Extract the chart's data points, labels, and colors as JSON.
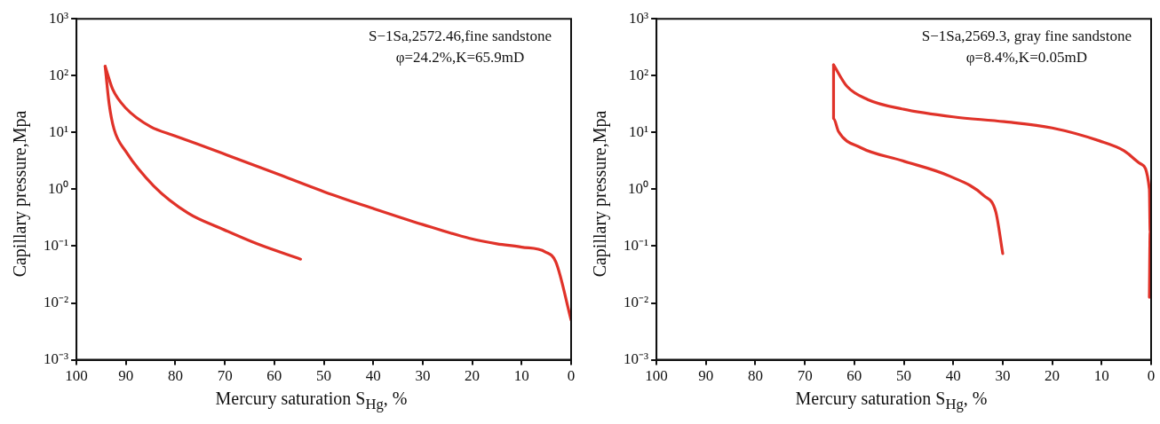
{
  "chart_data": [
    {
      "type": "line",
      "xlabel": "Mercury saturation S$_{Hg}$, %",
      "ylabel": "Capillary pressure,Mpa",
      "xlim": [
        100,
        0
      ],
      "xticks": [
        100,
        90,
        80,
        70,
        60,
        50,
        40,
        30,
        20,
        10,
        0
      ],
      "ylim": [
        0.001,
        1000
      ],
      "yticks": [
        {
          "value": 0.001,
          "label": "10⁻³"
        },
        {
          "value": 0.01,
          "label": "10⁻²"
        },
        {
          "value": 0.1,
          "label": "10⁻¹"
        },
        {
          "value": 1,
          "label": "10⁰"
        },
        {
          "value": 10,
          "label": "10¹"
        },
        {
          "value": 100,
          "label": "10²"
        },
        {
          "value": 1000,
          "label": "10³"
        }
      ],
      "log": "y",
      "grid": false,
      "legend": false,
      "marker": "none",
      "line_style": "solid",
      "annotations": [
        "S−1Sa,2572.46,fine sandstone",
        "φ=24.2%,K=65.9mD"
      ],
      "series": [
        {
          "color": "#e03229",
          "x": [
            0,
            3.1,
            5.2,
            10,
            15,
            20.5,
            30,
            40,
            49.7,
            60,
            70.5,
            80.2,
            85,
            90,
            92.7,
            94.2
          ],
          "values": [
            0.005,
            0.053,
            0.079,
            0.096,
            0.11,
            0.137,
            0.24,
            0.46,
            0.89,
            1.95,
            4.3,
            8.8,
            12.6,
            26.7,
            58,
            146
          ]
        },
        {
          "color": "#e03229",
          "x": [
            94.2,
            93.4,
            92.4,
            90,
            84.4,
            77.4,
            70.5,
            63.5,
            54.7
          ],
          "values": [
            146,
            32,
            11.4,
            4.6,
            1.15,
            0.38,
            0.2,
            0.11,
            0.059
          ]
        }
      ]
    },
    {
      "type": "line",
      "xlabel": "Mercury saturation S$_{Hg}$, %",
      "ylabel": "Capillary pressure,Mpa",
      "xlim": [
        100,
        0
      ],
      "xticks": [
        100,
        90,
        80,
        70,
        60,
        50,
        40,
        30,
        20,
        10,
        0
      ],
      "ylim": [
        0.001,
        1000
      ],
      "yticks": [
        {
          "value": 0.001,
          "label": "10⁻³"
        },
        {
          "value": 0.01,
          "label": "10⁻²"
        },
        {
          "value": 0.1,
          "label": "10⁻¹"
        },
        {
          "value": 1,
          "label": "10⁰"
        },
        {
          "value": 10,
          "label": "10¹"
        },
        {
          "value": 100,
          "label": "10²"
        },
        {
          "value": 1000,
          "label": "10³"
        }
      ],
      "log": "y",
      "grid": false,
      "legend": false,
      "marker": "none",
      "line_style": "solid",
      "annotations": [
        "S−1Sa,2569.3, gray fine sandstone",
        "φ=8.4%,K=0.05mD"
      ],
      "series": [
        {
          "color": "#e03229",
          "x": [
            0.35,
            0.2,
            0.35,
            2.1,
            5.5,
            10.4,
            20,
            29.7,
            40,
            50.4,
            57.3,
            61.5,
            64.2
          ],
          "values": [
            0.0126,
            0.18,
            1.0,
            2.8,
            4.8,
            7.1,
            12,
            15.5,
            18.8,
            26,
            38,
            65,
            155
          ]
        },
        {
          "color": "#e03229",
          "x": [
            64.2,
            64.2,
            64.2,
            63.2,
            58.7,
            50.4,
            40.7,
            33.8,
            31.4,
            30
          ],
          "values": [
            155,
            57,
            17.6,
            10.4,
            5.4,
            3.2,
            1.7,
            0.77,
            0.4,
            0.074
          ]
        }
      ]
    }
  ]
}
